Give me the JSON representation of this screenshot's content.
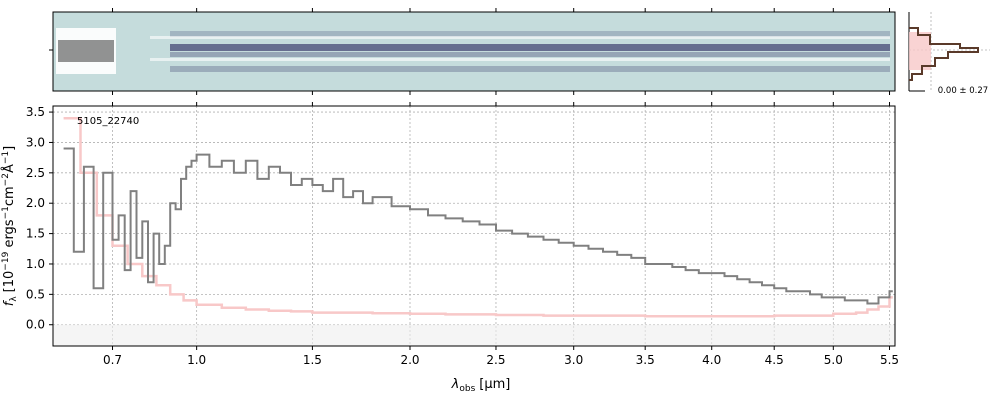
{
  "chart_data": [
    {
      "type": "heatmap",
      "panel": "2d-spectrum",
      "background_color": "#c5dcdc",
      "trace_color": "#3d3f6e"
    },
    {
      "type": "line",
      "panel": "1d-spectrum",
      "annotation": "5105_22740",
      "xlabel": "λ_obs [μm]",
      "xlabel_main": "λ",
      "xlabel_sub": "obs",
      "xlabel_unit": "[μm]",
      "ylabel": "f_λ [10^-19 ergs^-1cm^-2Å^-1]",
      "ylabel_text": "f",
      "ylabel_sub": "λ",
      "ylabel_bracket": "[10",
      "ylabel_exp": "−19",
      "ylabel_mid": " ergs",
      "ylabel_exp2": "−1",
      "ylabel_mid2": "cm",
      "ylabel_exp3": "−2",
      "ylabel_end": "Å",
      "ylabel_exp4": "−1",
      "ylabel_close": "]",
      "x_scale": "square-root-like",
      "xlim": [
        0.52,
        5.55
      ],
      "ylim": [
        -0.35,
        3.6
      ],
      "grid": true,
      "x_ticks": [
        "0.7",
        "1.0",
        "1.5",
        "2.0",
        "2.5",
        "3.0",
        "3.5",
        "4.0",
        "4.5",
        "5.0",
        "5.5"
      ],
      "x_tick_values": [
        0.7,
        1.0,
        1.5,
        2.0,
        2.5,
        3.0,
        3.5,
        4.0,
        4.5,
        5.0,
        5.5
      ],
      "y_ticks": [
        "0.0",
        "0.5",
        "1.0",
        "1.5",
        "2.0",
        "2.5",
        "3.0",
        "3.5"
      ],
      "y_tick_values": [
        0.0,
        0.5,
        1.0,
        1.5,
        2.0,
        2.5,
        3.0,
        3.5
      ],
      "series": [
        {
          "style": "step",
          "color": "#808080",
          "x": [
            0.55,
            0.58,
            0.61,
            0.64,
            0.67,
            0.7,
            0.72,
            0.74,
            0.76,
            0.78,
            0.8,
            0.82,
            0.84,
            0.86,
            0.88,
            0.9,
            0.92,
            0.94,
            0.96,
            0.98,
            1.0,
            1.05,
            1.1,
            1.15,
            1.2,
            1.25,
            1.3,
            1.35,
            1.4,
            1.45,
            1.5,
            1.55,
            1.6,
            1.65,
            1.7,
            1.75,
            1.8,
            1.9,
            2.0,
            2.1,
            2.2,
            2.3,
            2.4,
            2.5,
            2.6,
            2.7,
            2.8,
            2.9,
            3.0,
            3.1,
            3.2,
            3.3,
            3.4,
            3.5,
            3.6,
            3.7,
            3.8,
            3.9,
            4.0,
            4.1,
            4.2,
            4.3,
            4.4,
            4.5,
            4.6,
            4.7,
            4.8,
            4.9,
            5.0,
            5.1,
            5.2,
            5.3,
            5.4,
            5.5
          ],
          "y": [
            2.9,
            1.2,
            2.6,
            0.6,
            2.5,
            1.4,
            1.8,
            0.9,
            2.2,
            1.1,
            1.7,
            0.7,
            1.5,
            1.0,
            1.3,
            2.0,
            1.9,
            2.4,
            2.6,
            2.7,
            2.8,
            2.6,
            2.7,
            2.5,
            2.7,
            2.4,
            2.6,
            2.5,
            2.3,
            2.4,
            2.3,
            2.2,
            2.4,
            2.1,
            2.2,
            2.0,
            2.1,
            1.95,
            1.9,
            1.8,
            1.75,
            1.7,
            1.65,
            1.55,
            1.5,
            1.45,
            1.4,
            1.35,
            1.3,
            1.25,
            1.2,
            1.15,
            1.1,
            1.0,
            1.0,
            0.95,
            0.9,
            0.85,
            0.85,
            0.8,
            0.75,
            0.7,
            0.65,
            0.6,
            0.55,
            0.55,
            0.5,
            0.45,
            0.45,
            0.4,
            0.4,
            0.35,
            0.45,
            0.55
          ]
        },
        {
          "style": "step",
          "color": "#f8c8c8",
          "x": [
            0.55,
            0.6,
            0.65,
            0.7,
            0.75,
            0.8,
            0.85,
            0.9,
            0.95,
            1.0,
            1.1,
            1.2,
            1.3,
            1.4,
            1.5,
            1.6,
            1.8,
            2.0,
            2.2,
            2.5,
            2.8,
            3.0,
            3.5,
            4.0,
            4.5,
            5.0,
            5.2,
            5.3,
            5.4,
            5.5
          ],
          "y": [
            3.4,
            2.5,
            1.8,
            1.3,
            1.0,
            0.8,
            0.65,
            0.5,
            0.4,
            0.33,
            0.28,
            0.25,
            0.23,
            0.22,
            0.2,
            0.2,
            0.19,
            0.18,
            0.17,
            0.16,
            0.15,
            0.15,
            0.14,
            0.14,
            0.15,
            0.18,
            0.2,
            0.25,
            0.3,
            0.45
          ]
        }
      ]
    },
    {
      "type": "histogram",
      "panel": "noise-histogram",
      "annotation": "0.00 ± 0.27"
    }
  ]
}
